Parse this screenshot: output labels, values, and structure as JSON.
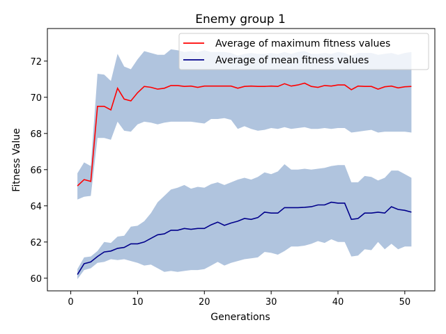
{
  "chart_data": {
    "type": "line",
    "title": "Enemy group 1",
    "xlabel": "Generations",
    "ylabel": "Fitness Value",
    "xlim": [
      -3.5,
      54.5
    ],
    "ylim": [
      59.3,
      73.8
    ],
    "xticks": [
      0,
      10,
      20,
      30,
      40,
      50
    ],
    "yticks": [
      60,
      62,
      64,
      66,
      68,
      70,
      72
    ],
    "grid": false,
    "legend_position": "top-right",
    "band_color": "#b0c4de",
    "x": [
      1,
      2,
      3,
      4,
      5,
      6,
      7,
      8,
      9,
      10,
      11,
      12,
      13,
      14,
      15,
      16,
      17,
      18,
      19,
      20,
      21,
      22,
      23,
      24,
      25,
      26,
      27,
      28,
      29,
      30,
      31,
      32,
      33,
      34,
      35,
      36,
      37,
      38,
      39,
      40,
      41,
      42,
      43,
      44,
      45,
      46,
      47,
      48,
      49,
      50,
      51
    ],
    "series": [
      {
        "name": "Average of maximum fitness values",
        "color": "#ff0000",
        "values": [
          65.1,
          65.45,
          65.35,
          69.5,
          69.5,
          69.3,
          70.5,
          69.9,
          69.8,
          70.25,
          70.6,
          70.55,
          70.45,
          70.5,
          70.65,
          70.65,
          70.6,
          70.62,
          70.55,
          70.62,
          70.62,
          70.62,
          70.62,
          70.62,
          70.5,
          70.6,
          70.62,
          70.6,
          70.6,
          70.62,
          70.6,
          70.75,
          70.62,
          70.68,
          70.78,
          70.6,
          70.55,
          70.65,
          70.62,
          70.68,
          70.68,
          70.42,
          70.62,
          70.6,
          70.6,
          70.45,
          70.58,
          70.62,
          70.52,
          70.58,
          70.6
        ],
        "band_upper": [
          65.8,
          66.4,
          66.2,
          71.3,
          71.25,
          70.9,
          72.4,
          71.7,
          71.55,
          72.1,
          72.55,
          72.45,
          72.35,
          72.35,
          72.65,
          72.6,
          72.5,
          72.55,
          72.5,
          72.6,
          72.5,
          72.5,
          72.5,
          72.45,
          72.3,
          72.4,
          72.45,
          72.4,
          72.4,
          72.45,
          72.4,
          72.5,
          72.4,
          72.5,
          72.55,
          72.4,
          72.4,
          72.45,
          72.4,
          72.5,
          72.45,
          72.3,
          72.45,
          72.45,
          72.45,
          72.35,
          72.4,
          72.45,
          72.35,
          72.45,
          72.5
        ],
        "band_lower": [
          64.35,
          64.5,
          64.55,
          67.75,
          67.75,
          67.65,
          68.65,
          68.15,
          68.1,
          68.5,
          68.65,
          68.6,
          68.5,
          68.6,
          68.65,
          68.65,
          68.65,
          68.65,
          68.6,
          68.55,
          68.8,
          68.8,
          68.85,
          68.75,
          68.25,
          68.4,
          68.25,
          68.15,
          68.2,
          68.3,
          68.25,
          68.35,
          68.25,
          68.3,
          68.35,
          68.25,
          68.25,
          68.3,
          68.25,
          68.3,
          68.3,
          68.05,
          68.1,
          68.15,
          68.2,
          68.05,
          68.1,
          68.1,
          68.1,
          68.1,
          68.05
        ]
      },
      {
        "name": "Average of mean fitness values",
        "color": "#00008b",
        "values": [
          60.2,
          60.8,
          60.9,
          61.2,
          61.45,
          61.5,
          61.65,
          61.7,
          61.9,
          61.9,
          62.0,
          62.2,
          62.4,
          62.45,
          62.65,
          62.65,
          62.75,
          62.7,
          62.75,
          62.75,
          62.95,
          63.1,
          62.92,
          63.05,
          63.15,
          63.3,
          63.25,
          63.35,
          63.65,
          63.6,
          63.6,
          63.9,
          63.9,
          63.9,
          63.92,
          63.95,
          64.05,
          64.05,
          64.2,
          64.15,
          64.15,
          63.25,
          63.3,
          63.6,
          63.6,
          63.65,
          63.6,
          63.95,
          63.8,
          63.75,
          63.65
        ],
        "band_upper": [
          60.5,
          61.15,
          61.2,
          61.5,
          62.0,
          61.95,
          62.3,
          62.35,
          62.85,
          62.9,
          63.15,
          63.6,
          64.2,
          64.55,
          64.9,
          65.0,
          65.15,
          64.95,
          65.05,
          65.0,
          65.2,
          65.3,
          65.15,
          65.3,
          65.45,
          65.55,
          65.45,
          65.6,
          65.85,
          65.75,
          65.9,
          66.3,
          66.0,
          66.0,
          66.05,
          66.0,
          66.05,
          66.1,
          66.2,
          66.25,
          66.25,
          65.3,
          65.3,
          65.65,
          65.6,
          65.4,
          65.55,
          65.95,
          65.95,
          65.75,
          65.55
        ],
        "band_lower": [
          59.95,
          60.45,
          60.55,
          60.85,
          60.9,
          61.05,
          61.0,
          61.05,
          60.95,
          60.85,
          60.7,
          60.75,
          60.55,
          60.35,
          60.4,
          60.35,
          60.4,
          60.45,
          60.45,
          60.5,
          60.7,
          60.9,
          60.7,
          60.85,
          60.95,
          61.05,
          61.1,
          61.15,
          61.45,
          61.4,
          61.3,
          61.5,
          61.75,
          61.75,
          61.8,
          61.9,
          62.05,
          61.95,
          62.15,
          62.0,
          62.0,
          61.2,
          61.25,
          61.6,
          61.55,
          62.0,
          61.6,
          61.9,
          61.6,
          61.75,
          61.75
        ]
      }
    ]
  }
}
